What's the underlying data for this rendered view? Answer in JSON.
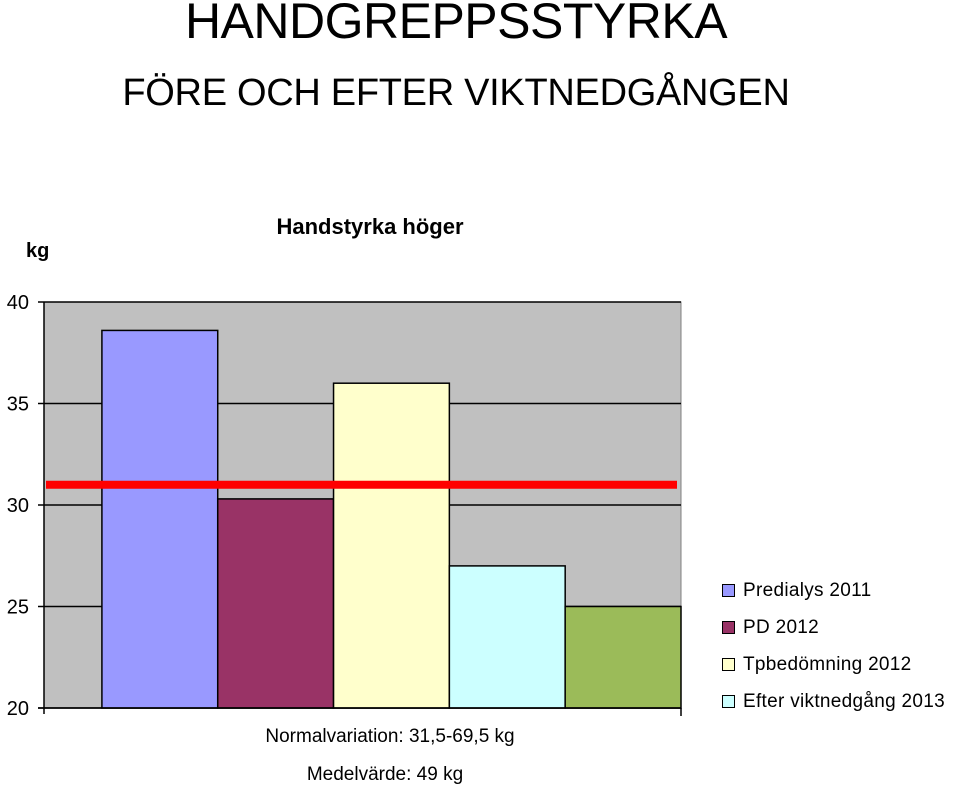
{
  "page": {
    "title": "HANDGREPPSSTYRKA",
    "subtitle": "FÖRE OCH EFTER VIKTNEDGÅNGEN",
    "note_range": "Normalvariation: 31,5-69,5 kg",
    "note_mean": "Medelvärde: 49 kg"
  },
  "chart_data": {
    "type": "bar",
    "title": "Handstyrka  höger",
    "ylabel": "kg",
    "xlabel": "",
    "ylim": [
      20,
      40
    ],
    "yticks": [
      40,
      35,
      30,
      25,
      20
    ],
    "grid": true,
    "plot_background": "#c0c0c0",
    "legend_position": "right",
    "series": [
      {
        "name": "Predialys 2011",
        "value": 38.6,
        "color": "#9999ff"
      },
      {
        "name": "PD 2012",
        "value": 30.3,
        "color": "#993366"
      },
      {
        "name": "Tpbedömning 2012",
        "value": 36,
        "color": "#ffffcc"
      },
      {
        "name": "Efter viktnedgång 2013",
        "value": 27,
        "color": "#ccffff"
      },
      {
        "name": "",
        "value": 25,
        "color": "#9bbb59"
      }
    ],
    "reference_line": {
      "value": 31,
      "color": "#ff0000"
    }
  }
}
